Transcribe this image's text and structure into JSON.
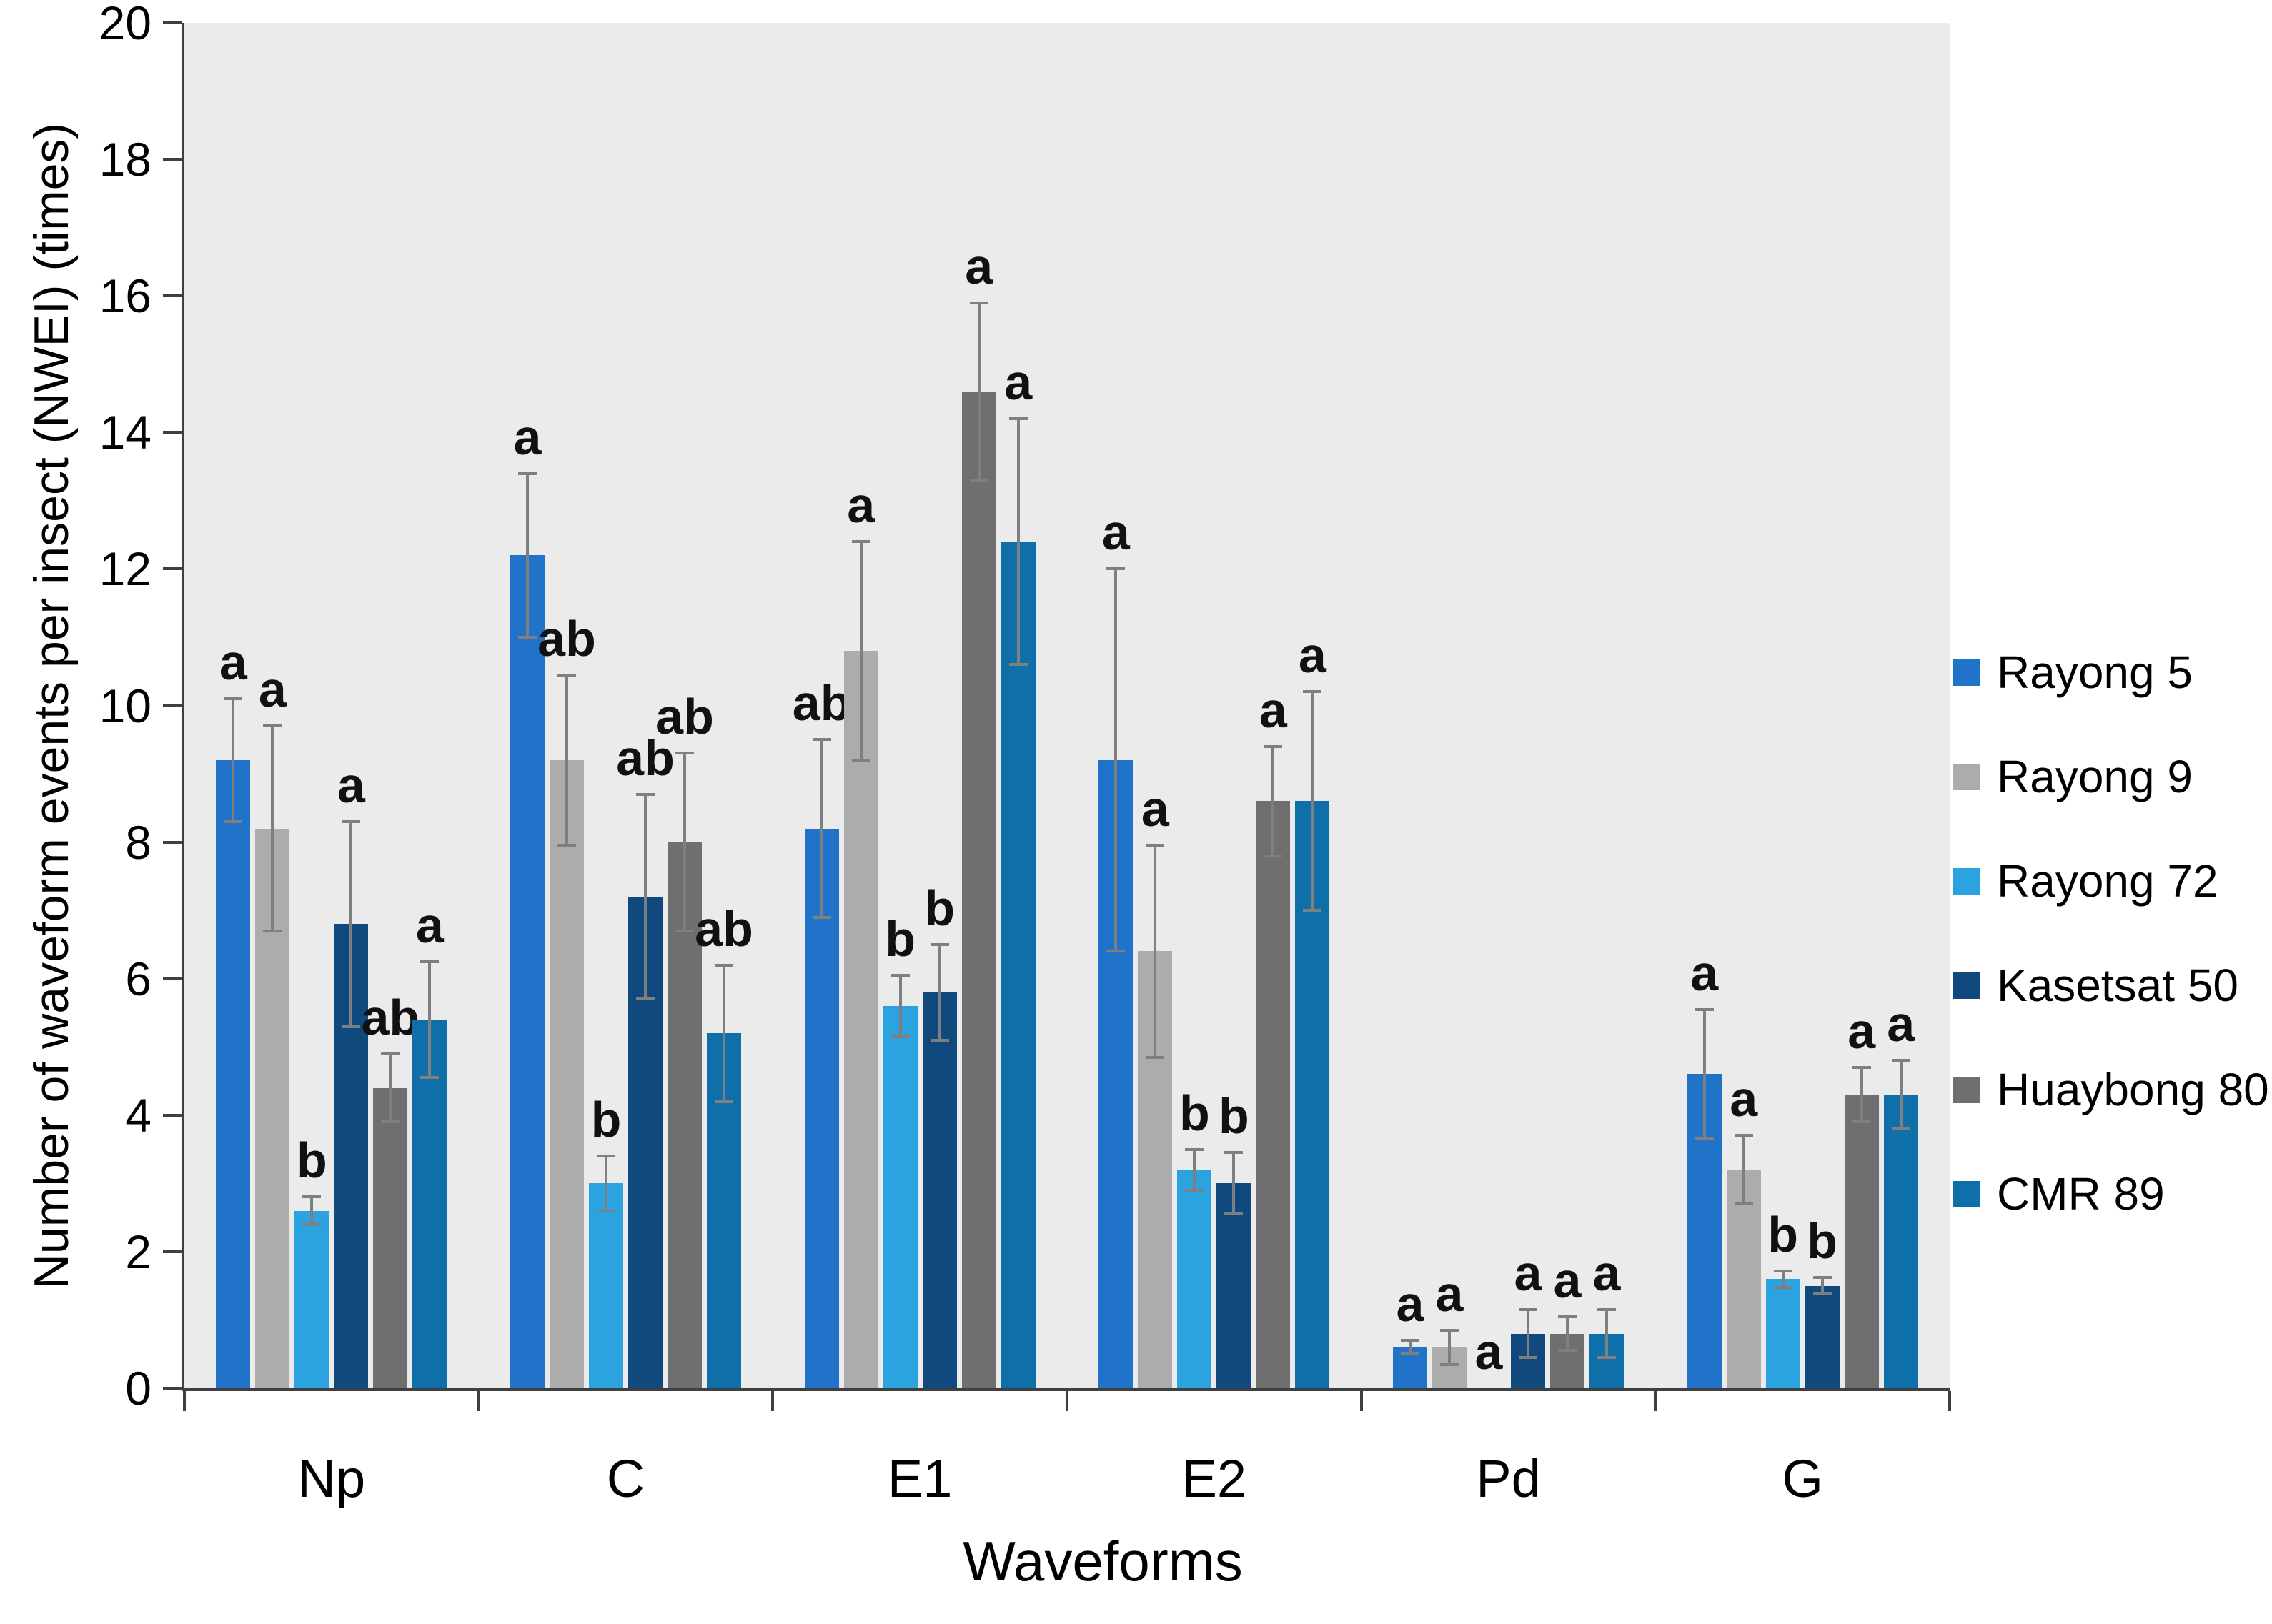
{
  "chart_data": {
    "type": "bar",
    "title": "",
    "xlabel": "Waveforms",
    "ylabel": "Number of waveform events per insect (NWEI) (times)",
    "ylim": [
      0,
      20
    ],
    "yticks": [
      0,
      2,
      4,
      6,
      8,
      10,
      12,
      14,
      16,
      18,
      20
    ],
    "grid": false,
    "legend_position": "right",
    "plot_background": "#EBEBEB",
    "axis_color": "#404040",
    "error_bar_color": "#7F7F7F",
    "categories": [
      "Np",
      "C",
      "E1",
      "E2",
      "Pd",
      "G"
    ],
    "series": [
      {
        "name": "Rayong 5",
        "color": "#2173C9",
        "values": [
          9.2,
          12.2,
          8.2,
          9.2,
          0.6,
          4.6
        ],
        "errors": [
          0.9,
          1.2,
          1.3,
          2.8,
          0.1,
          0.95
        ],
        "letters": [
          "a",
          "a",
          "ab",
          "a",
          "a",
          "a"
        ]
      },
      {
        "name": "Rayong 9",
        "color": "#ACACAC",
        "values": [
          8.2,
          9.2,
          10.8,
          6.4,
          0.6,
          3.2
        ],
        "errors": [
          1.5,
          1.25,
          1.6,
          1.55,
          0.25,
          0.5
        ],
        "letters": [
          "a",
          "ab",
          "a",
          "a",
          "a",
          "a"
        ]
      },
      {
        "name": "Rayong 72",
        "color": "#2AA3E0",
        "values": [
          2.6,
          3.0,
          5.6,
          3.2,
          0,
          1.6
        ],
        "errors": [
          0.2,
          0.4,
          0.45,
          0.3,
          0,
          0.12
        ],
        "letters": [
          "b",
          "b",
          "b",
          "b",
          "a",
          "b"
        ]
      },
      {
        "name": "Kasetsat 50",
        "color": "#10497E",
        "values": [
          6.8,
          7.2,
          5.8,
          3.0,
          0.8,
          1.5
        ],
        "errors": [
          1.5,
          1.5,
          0.7,
          0.45,
          0.35,
          0.12
        ],
        "letters": [
          "a",
          "ab",
          "b",
          "b",
          "a",
          "b"
        ]
      },
      {
        "name": "Huaybong 80",
        "color": "#6F6F6F",
        "values": [
          4.4,
          8.0,
          14.6,
          8.6,
          0.8,
          4.3
        ],
        "errors": [
          0.5,
          1.3,
          1.3,
          0.8,
          0.25,
          0.4
        ],
        "letters": [
          "ab",
          "ab",
          "a",
          "a",
          "a",
          "a"
        ]
      },
      {
        "name": "CMR 89",
        "color": "#0F6FA9",
        "values": [
          5.4,
          5.2,
          12.4,
          8.6,
          0.8,
          4.3
        ],
        "errors": [
          0.85,
          1.0,
          1.8,
          1.6,
          0.35,
          0.5
        ],
        "letters": [
          "a",
          "ab",
          "a",
          "a",
          "a",
          "a"
        ]
      }
    ]
  }
}
